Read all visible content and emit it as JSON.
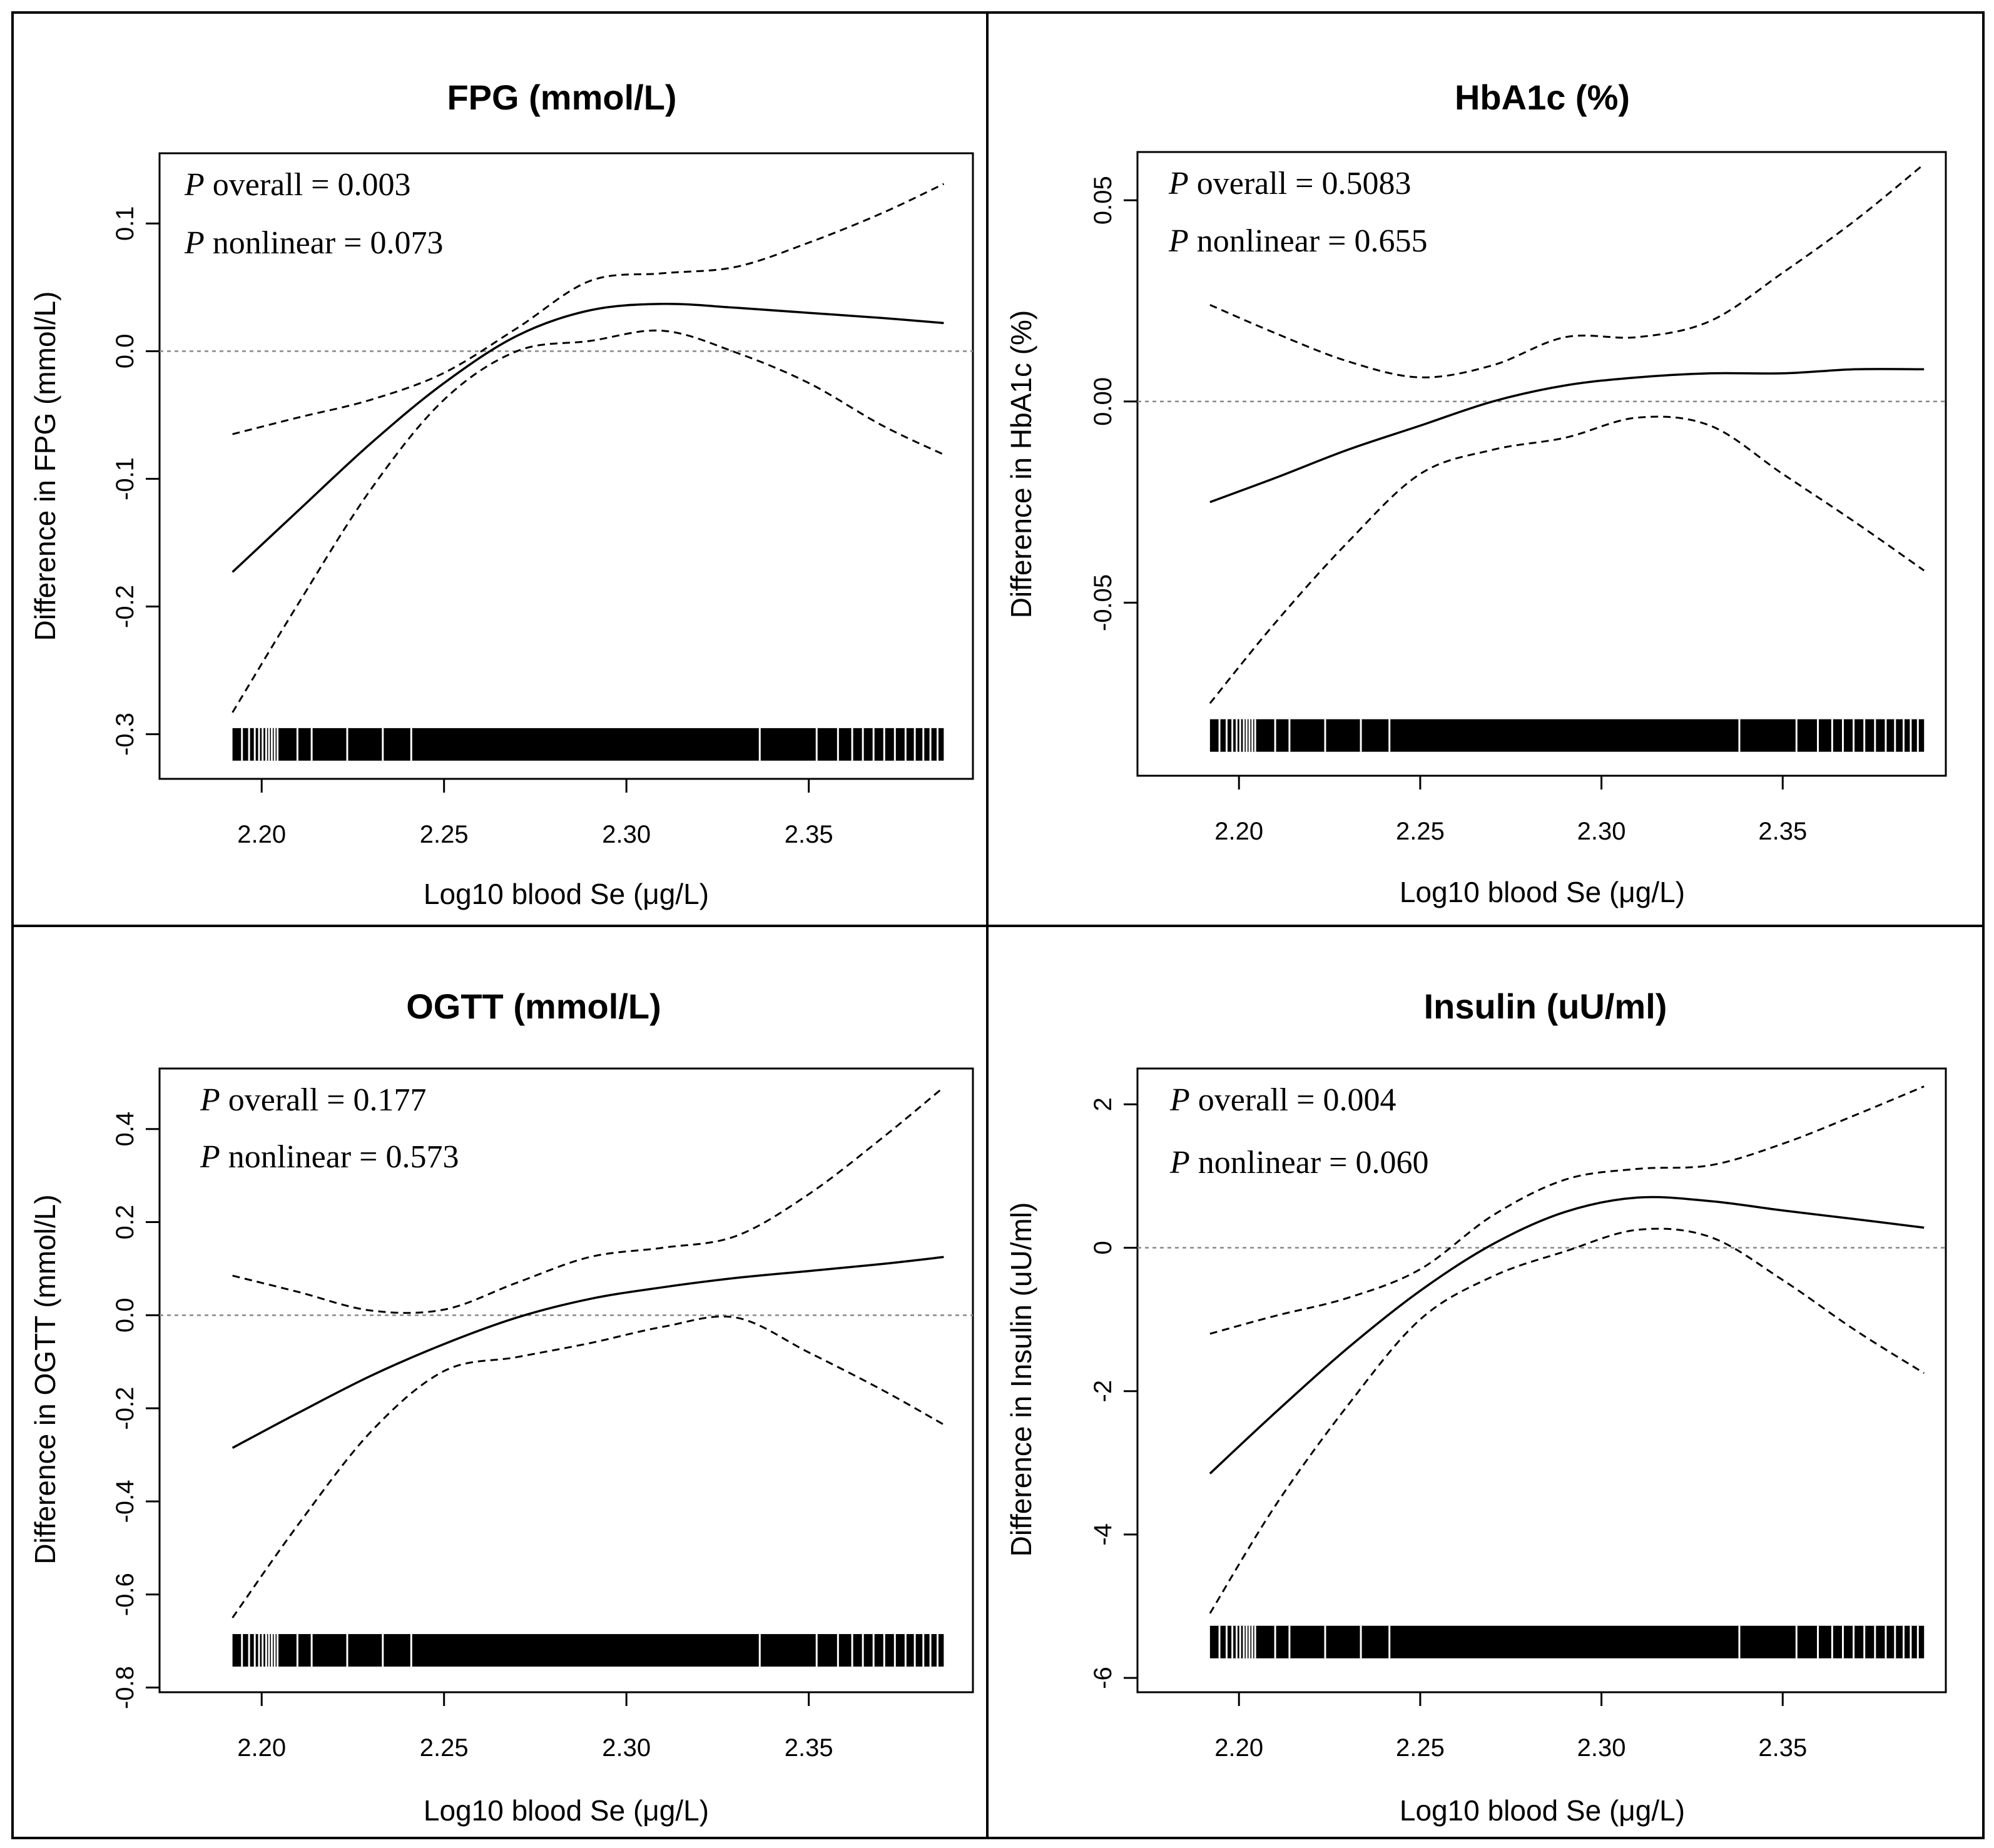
{
  "chart_data": [
    {
      "type": "line",
      "title": "FPG (mmol/L)",
      "xlabel": "Log10 blood Se (μg/L)",
      "ylabel": "Difference in FPG (mmol/L)",
      "xlim": [
        2.172,
        2.395
      ],
      "ylim": [
        -0.335,
        0.155
      ],
      "xticks": [
        2.2,
        2.25,
        2.3,
        2.35
      ],
      "xtick_labels": [
        "2.20",
        "2.25",
        "2.30",
        "2.35"
      ],
      "yticks": [
        -0.3,
        -0.2,
        -0.1,
        0.0,
        0.1
      ],
      "ytick_labels": [
        "-0.3",
        "-0.2",
        "-0.1",
        "0.0",
        "0.1"
      ],
      "reference_line_y": 0,
      "annotations": [
        {
          "prefix": "P",
          "text": " overall = 0.003"
        },
        {
          "prefix": "P",
          "text": " nonlinear = 0.073"
        }
      ],
      "x": [
        2.192,
        2.21,
        2.23,
        2.25,
        2.27,
        2.29,
        2.31,
        2.33,
        2.35,
        2.37,
        2.387
      ],
      "series": [
        {
          "name": "estimate",
          "style": "solid",
          "values": [
            -0.173,
            -0.125,
            -0.072,
            -0.025,
            0.012,
            0.032,
            0.037,
            0.034,
            0.03,
            0.026,
            0.022
          ]
        },
        {
          "name": "upper 95% CI",
          "style": "dashed",
          "values": [
            -0.065,
            -0.052,
            -0.038,
            -0.017,
            0.018,
            0.055,
            0.061,
            0.066,
            0.085,
            0.108,
            0.131
          ]
        },
        {
          "name": "lower 95% CI",
          "style": "dashed",
          "values": [
            -0.283,
            -0.198,
            -0.108,
            -0.038,
            0.0,
            0.008,
            0.016,
            -0.001,
            -0.025,
            -0.058,
            -0.081
          ]
        }
      ],
      "rug": {
        "x_min": 2.192,
        "x_max": 2.387,
        "y": -0.308
      }
    },
    {
      "type": "line",
      "title": "HbA1c (%)",
      "xlabel": "Log10 blood Se (μg/L)",
      "ylabel": "Difference in HbA1c (%)",
      "xlim": [
        2.172,
        2.395
      ],
      "ylim": [
        -0.093,
        0.062
      ],
      "xticks": [
        2.2,
        2.25,
        2.3,
        2.35
      ],
      "xtick_labels": [
        "2.20",
        "2.25",
        "2.30",
        "2.35"
      ],
      "yticks": [
        -0.05,
        0.0,
        0.05
      ],
      "ytick_labels": [
        "-0.05",
        "0.00",
        "0.05"
      ],
      "reference_line_y": 0,
      "annotations": [
        {
          "prefix": "P",
          "text": " overall = 0.5083"
        },
        {
          "prefix": "P",
          "text": " nonlinear = 0.655"
        }
      ],
      "x": [
        2.192,
        2.21,
        2.23,
        2.25,
        2.27,
        2.29,
        2.31,
        2.33,
        2.35,
        2.37,
        2.389
      ],
      "series": [
        {
          "name": "estimate",
          "style": "solid",
          "values": [
            -0.025,
            -0.019,
            -0.012,
            -0.006,
            0.0,
            0.004,
            0.006,
            0.007,
            0.007,
            0.008,
            0.008
          ]
        },
        {
          "name": "upper 95% CI",
          "style": "dashed",
          "values": [
            0.024,
            0.017,
            0.01,
            0.006,
            0.009,
            0.016,
            0.016,
            0.02,
            0.032,
            0.045,
            0.059
          ]
        },
        {
          "name": "lower 95% CI",
          "style": "dashed",
          "values": [
            -0.075,
            -0.055,
            -0.035,
            -0.018,
            -0.012,
            -0.009,
            -0.004,
            -0.006,
            -0.018,
            -0.03,
            -0.042
          ]
        }
      ],
      "rug": {
        "x_min": 2.192,
        "x_max": 2.389,
        "y": -0.083
      }
    },
    {
      "type": "line",
      "title": "OGTT (mmol/L)",
      "xlabel": "Log10 blood Se (μg/L)",
      "ylabel": "Difference in OGTT (mmol/L)",
      "xlim": [
        2.172,
        2.395
      ],
      "ylim": [
        -0.81,
        0.53
      ],
      "xticks": [
        2.2,
        2.25,
        2.3,
        2.35
      ],
      "xtick_labels": [
        "2.20",
        "2.25",
        "2.30",
        "2.35"
      ],
      "yticks": [
        -0.8,
        -0.6,
        -0.4,
        -0.2,
        0.0,
        0.2,
        0.4
      ],
      "ytick_labels": [
        "-0.8",
        "-0.6",
        "-0.4",
        "-0.2",
        "0.0",
        "0.2",
        "0.4"
      ],
      "reference_line_y": 0,
      "annotations": [
        {
          "prefix": "P",
          "text": " overall = 0.177"
        },
        {
          "prefix": "P",
          "text": " nonlinear = 0.573"
        }
      ],
      "x": [
        2.192,
        2.21,
        2.23,
        2.25,
        2.27,
        2.29,
        2.31,
        2.33,
        2.35,
        2.37,
        2.387
      ],
      "series": [
        {
          "name": "estimate",
          "style": "solid",
          "values": [
            -0.285,
            -0.21,
            -0.13,
            -0.062,
            -0.005,
            0.035,
            0.06,
            0.08,
            0.095,
            0.11,
            0.125
          ]
        },
        {
          "name": "upper 95% CI",
          "style": "dashed",
          "values": [
            0.085,
            0.05,
            0.01,
            0.012,
            0.07,
            0.125,
            0.145,
            0.17,
            0.26,
            0.38,
            0.49
          ]
        },
        {
          "name": "lower 95% CI",
          "style": "dashed",
          "values": [
            -0.65,
            -0.45,
            -0.25,
            -0.12,
            -0.09,
            -0.06,
            -0.025,
            -0.005,
            -0.08,
            -0.16,
            -0.235
          ]
        }
      ],
      "rug": {
        "x_min": 2.192,
        "x_max": 2.387,
        "y": -0.72
      }
    },
    {
      "type": "line",
      "title": "Insulin (uU/ml)",
      "xlabel": "Log10 blood Se (μg/L)",
      "ylabel": "Difference in Insulin (uU/ml)",
      "xlim": [
        2.172,
        2.395
      ],
      "ylim": [
        -6.2,
        2.5
      ],
      "xticks": [
        2.2,
        2.25,
        2.3,
        2.35
      ],
      "xtick_labels": [
        "2.20",
        "2.25",
        "2.30",
        "2.35"
      ],
      "yticks": [
        -6,
        -4,
        -2,
        0,
        2
      ],
      "ytick_labels": [
        "-6",
        "-4",
        "-2",
        "0",
        "2"
      ],
      "reference_line_y": 0,
      "annotations": [
        {
          "prefix": "P",
          "text": " overall = 0.004"
        },
        {
          "prefix": "P",
          "text": " nonlinear = 0.060"
        }
      ],
      "x": [
        2.192,
        2.21,
        2.23,
        2.25,
        2.27,
        2.29,
        2.31,
        2.33,
        2.35,
        2.37,
        2.389
      ],
      "series": [
        {
          "name": "estimate",
          "style": "solid",
          "values": [
            -3.15,
            -2.3,
            -1.4,
            -0.6,
            0.05,
            0.5,
            0.7,
            0.65,
            0.52,
            0.4,
            0.28
          ]
        },
        {
          "name": "upper 95% CI",
          "style": "dashed",
          "values": [
            -1.2,
            -0.95,
            -0.7,
            -0.3,
            0.45,
            0.95,
            1.1,
            1.15,
            1.45,
            1.85,
            2.25
          ]
        },
        {
          "name": "lower 95% CI",
          "style": "dashed",
          "values": [
            -5.1,
            -3.6,
            -2.2,
            -1.0,
            -0.4,
            -0.05,
            0.25,
            0.15,
            -0.45,
            -1.15,
            -1.75
          ]
        }
      ],
      "rug": {
        "x_min": 2.192,
        "x_max": 2.389,
        "y": -5.5
      }
    }
  ]
}
